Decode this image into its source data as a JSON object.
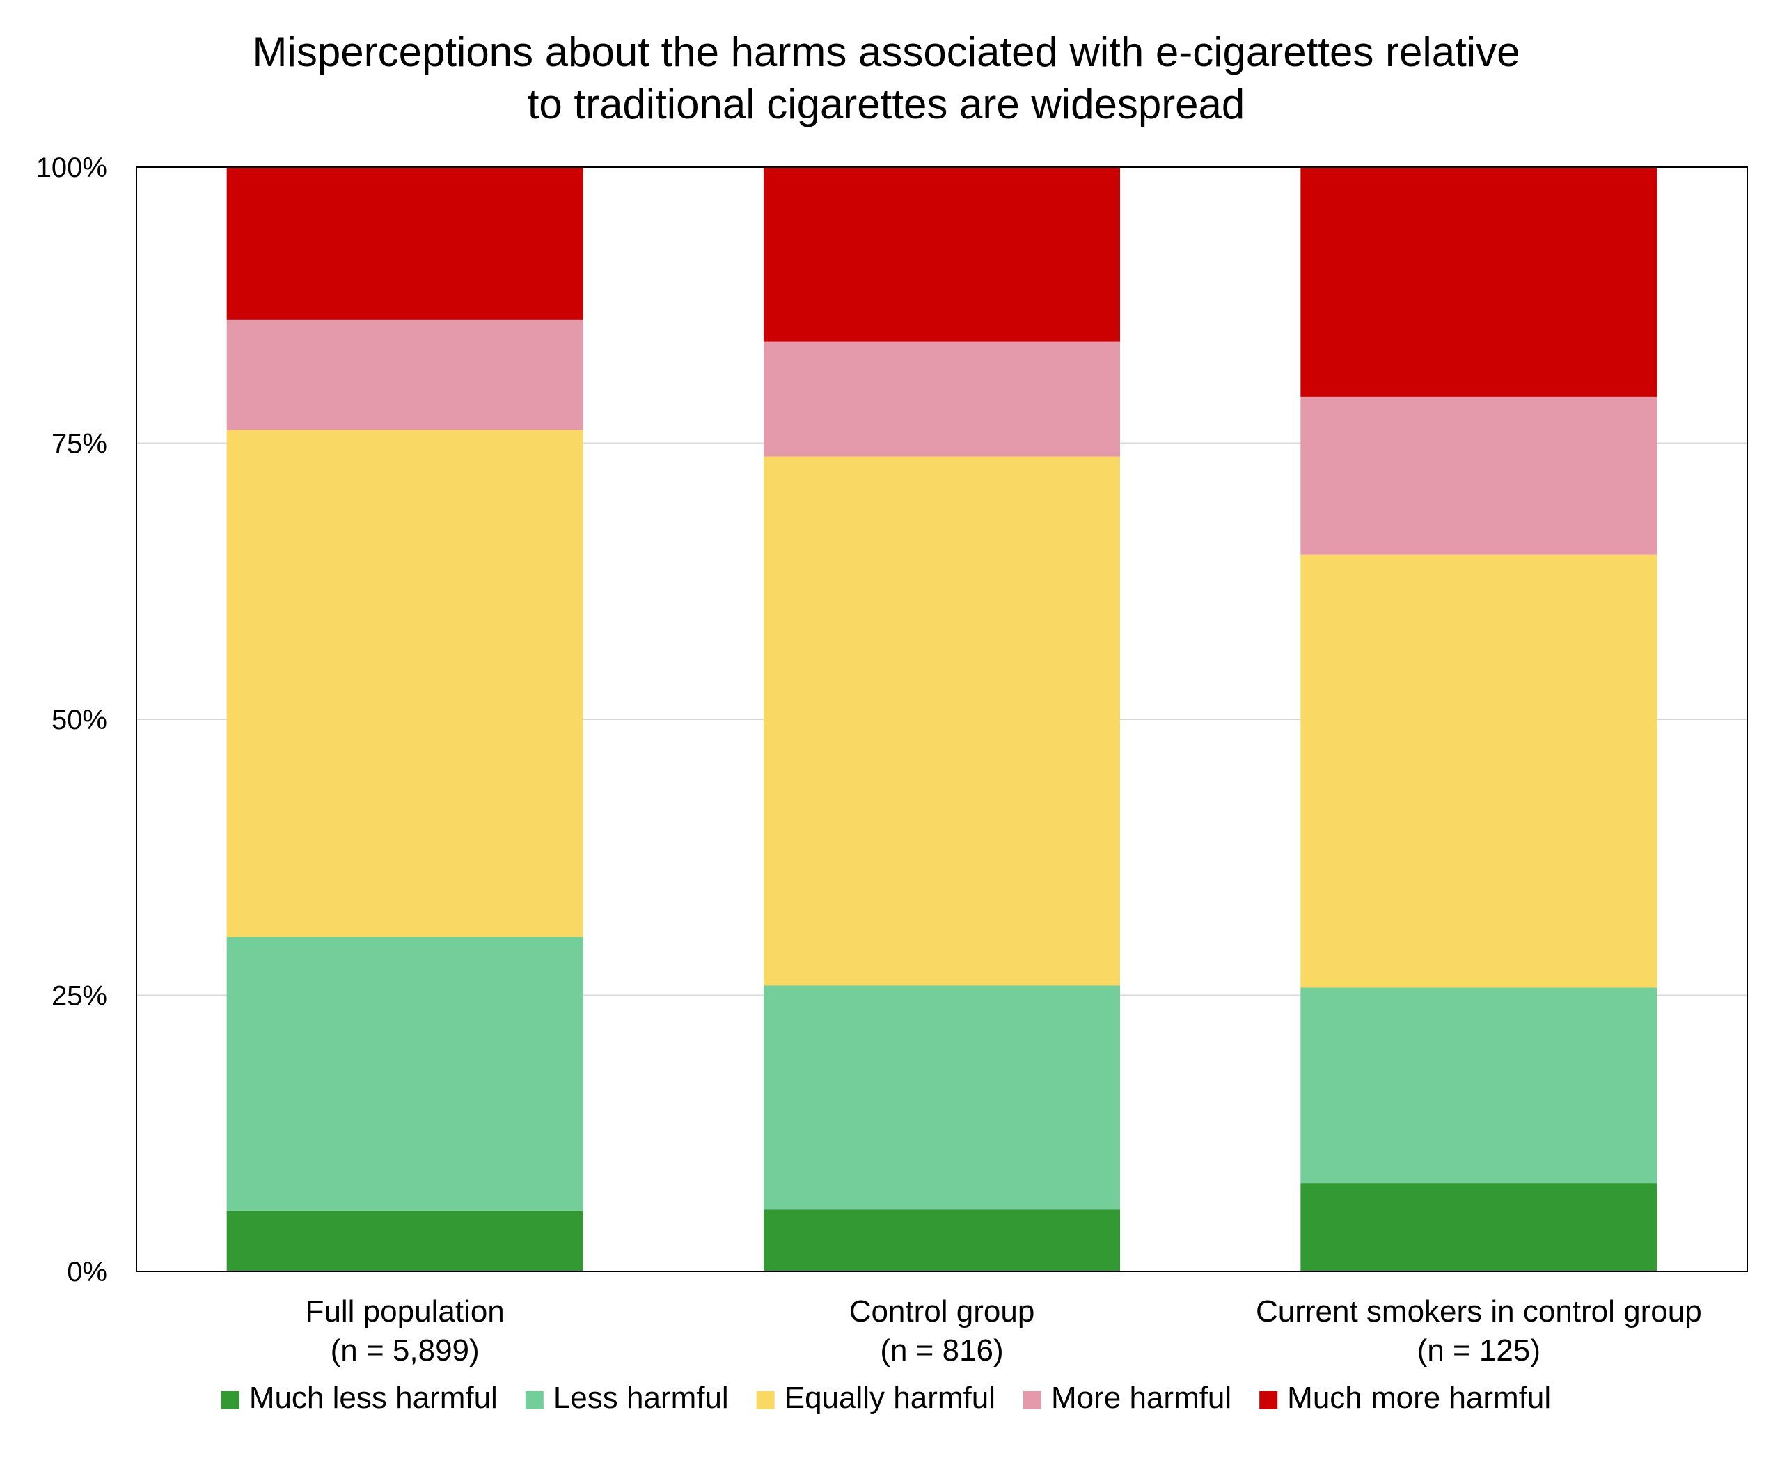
{
  "chart_data": {
    "type": "bar",
    "stacked": true,
    "title": [
      "Misperceptions about the harms associated with e-cigarettes relative",
      "to traditional cigarettes are widespread"
    ],
    "categories": [
      [
        "Full population",
        "(n = 5,899)"
      ],
      [
        "Control group",
        "(n = 816)"
      ],
      [
        "Current smokers in control group",
        "(n = 125)"
      ]
    ],
    "ylim": [
      0,
      100
    ],
    "yticks": [
      0,
      25,
      50,
      75,
      100
    ],
    "ytick_labels": [
      "0%",
      "25%",
      "50%",
      "75%",
      "100%"
    ],
    "grid": true,
    "legend_position": "bottom",
    "series": [
      {
        "name": "Much less harmful",
        "color": "#339933",
        "values": [
          5.5,
          5.6,
          8.0
        ]
      },
      {
        "name": "Less harmful",
        "color": "#74CE9A",
        "values": [
          24.8,
          20.3,
          17.7
        ]
      },
      {
        "name": "Equally harmful",
        "color": "#F9D963",
        "values": [
          45.9,
          47.9,
          39.2
        ]
      },
      {
        "name": "More harmful",
        "color": "#E49AAA",
        "values": [
          10.0,
          10.4,
          14.3
        ]
      },
      {
        "name": "Much more harmful",
        "color": "#CC0000",
        "values": [
          13.8,
          15.8,
          20.8
        ]
      }
    ]
  }
}
